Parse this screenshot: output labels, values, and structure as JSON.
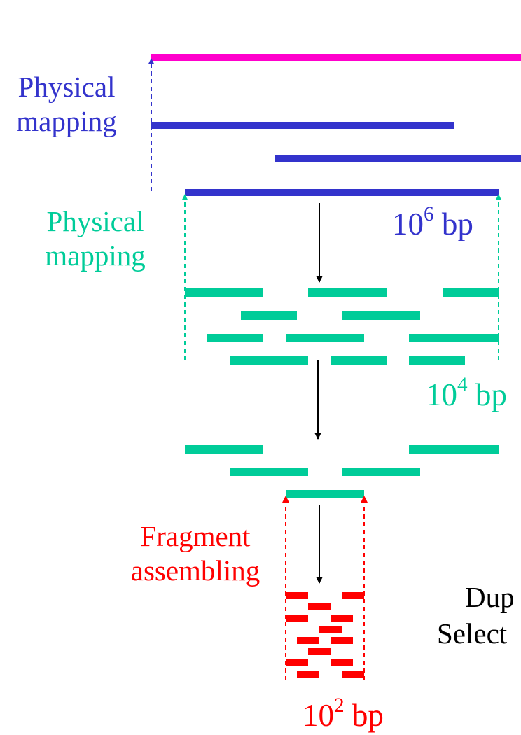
{
  "colors": {
    "magenta": "#ff00cc",
    "blue": "#3333cc",
    "teal": "#00cc99",
    "red": "#ff0000",
    "black": "#000000"
  },
  "labels": {
    "physical_mapping_1": {
      "line1": "Physical",
      "line2": "mapping"
    },
    "physical_mapping_2": {
      "line1": "Physical",
      "line2": "mapping"
    },
    "fragment_assembling": {
      "line1": "Fragment",
      "line2": "assembling"
    },
    "scale_1e6": {
      "base": "10",
      "exp": "6",
      "unit": "bp"
    },
    "scale_1e4": {
      "base": "10",
      "exp": "4",
      "unit": "bp"
    },
    "scale_1e2": {
      "base": "10",
      "exp": "2",
      "unit": "bp"
    },
    "cut_text_1": "Dup",
    "cut_text_2": "Select"
  }
}
